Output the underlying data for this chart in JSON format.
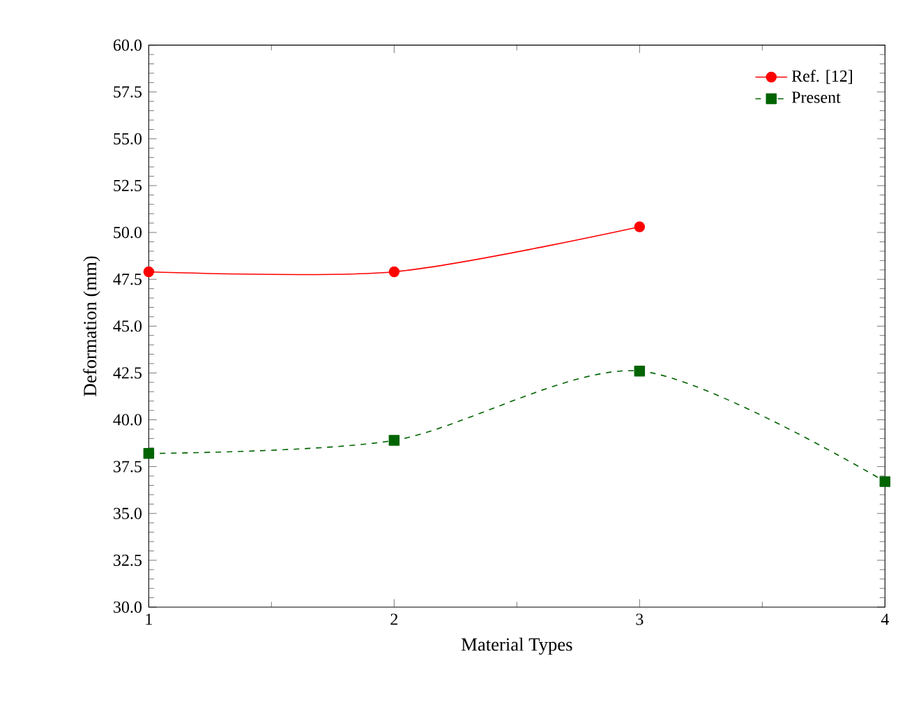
{
  "chart_data": {
    "type": "line",
    "xlabel": "Material Types",
    "ylabel": "Deformation (mm)",
    "x": [
      1,
      2,
      3,
      4
    ],
    "series": [
      {
        "name": "Ref. [12]",
        "color": "#ff0000",
        "values": [
          47.9,
          47.9,
          50.3,
          null
        ],
        "marker": "circle",
        "line_style": "solid"
      },
      {
        "name": "Present",
        "color": "#006400",
        "values": [
          38.2,
          38.9,
          42.6,
          36.7
        ],
        "marker": "square",
        "line_style": "dashed"
      }
    ],
    "xlim": [
      1,
      4
    ],
    "xticks": [
      1,
      2,
      3,
      4
    ],
    "ylim": [
      30,
      60
    ],
    "yticks": [
      {
        "value": 30,
        "label": "30.0"
      },
      {
        "value": 32.5,
        "label": "32.5"
      },
      {
        "value": 35,
        "label": "35.0"
      },
      {
        "value": 37.5,
        "label": "37.5"
      },
      {
        "value": 40,
        "label": "40.0"
      },
      {
        "value": 42.5,
        "label": "42.5"
      },
      {
        "value": 45,
        "label": "45.0"
      },
      {
        "value": 47.5,
        "label": "47.5"
      },
      {
        "value": 50,
        "label": "50.0"
      },
      {
        "value": 52.5,
        "label": "52.5"
      },
      {
        "value": 55,
        "label": "55.0"
      },
      {
        "value": 57.5,
        "label": "57.5"
      },
      {
        "value": 60,
        "label": "60.0"
      }
    ],
    "legend": "top right",
    "grid": false
  }
}
